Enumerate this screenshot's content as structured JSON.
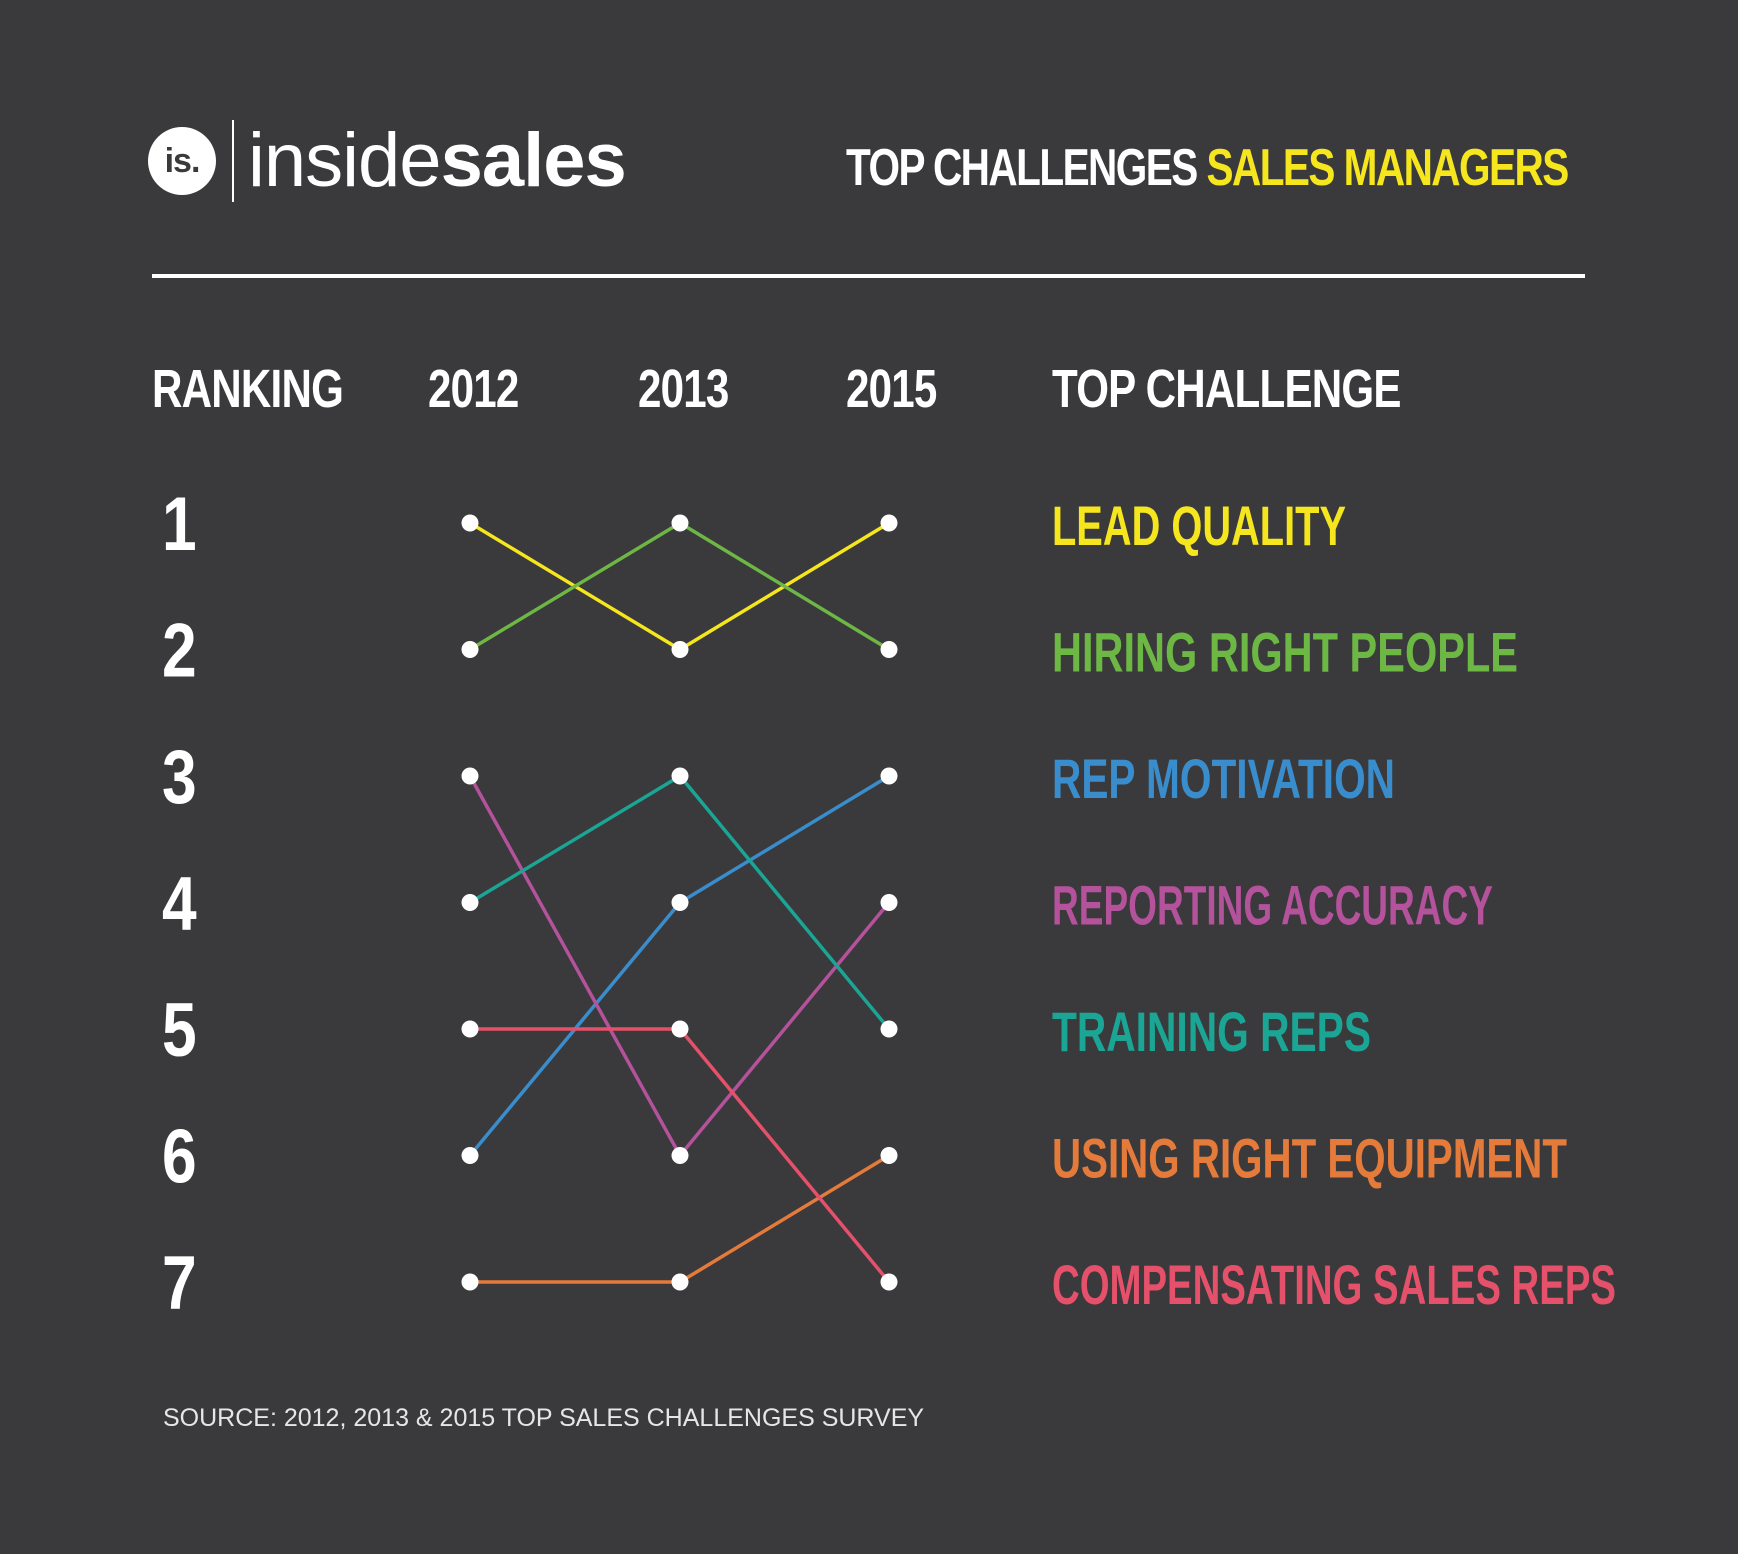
{
  "brand": {
    "logo_mark": "is.",
    "name_light": "inside",
    "name_bold": "sales"
  },
  "headline": {
    "part1": "TOP CHALLENGES",
    "part2": "SALES MANAGERS",
    "accent_color": "#f5e61e"
  },
  "source": "SOURCE: 2012, 2013 & 2015 TOP SALES CHALLENGES SURVEY",
  "chart_data": {
    "type": "line",
    "title": "TOP CHALLENGES SALES MANAGERS",
    "rank_header": "RANKING",
    "label_header": "TOP CHALLENGE",
    "x": [
      "2012",
      "2013",
      "2015"
    ],
    "ranks": [
      "1",
      "2",
      "3",
      "4",
      "5",
      "6",
      "7"
    ],
    "ylim": [
      1,
      7
    ],
    "y_inverted": true,
    "series": [
      {
        "name": "LEAD QUALITY",
        "color": "#f5e61e",
        "values": [
          1,
          2,
          1
        ]
      },
      {
        "name": "HIRING RIGHT PEOPLE",
        "color": "#6db744",
        "values": [
          2,
          1,
          2
        ]
      },
      {
        "name": "REP MOTIVATION",
        "color": "#3a8dcc",
        "values": [
          6,
          4,
          3
        ]
      },
      {
        "name": "REPORTING ACCURACY",
        "color": "#b5529c",
        "values": [
          3,
          6,
          4
        ]
      },
      {
        "name": "TRAINING REPS",
        "color": "#1aa595",
        "values": [
          4,
          3,
          5
        ]
      },
      {
        "name": "USING RIGHT EQUIPMENT",
        "color": "#e57b3a",
        "values": [
          7,
          7,
          6
        ]
      },
      {
        "name": "COMPENSATING SALES REPS",
        "color": "#e5506a",
        "values": [
          5,
          5,
          7
        ]
      }
    ]
  }
}
